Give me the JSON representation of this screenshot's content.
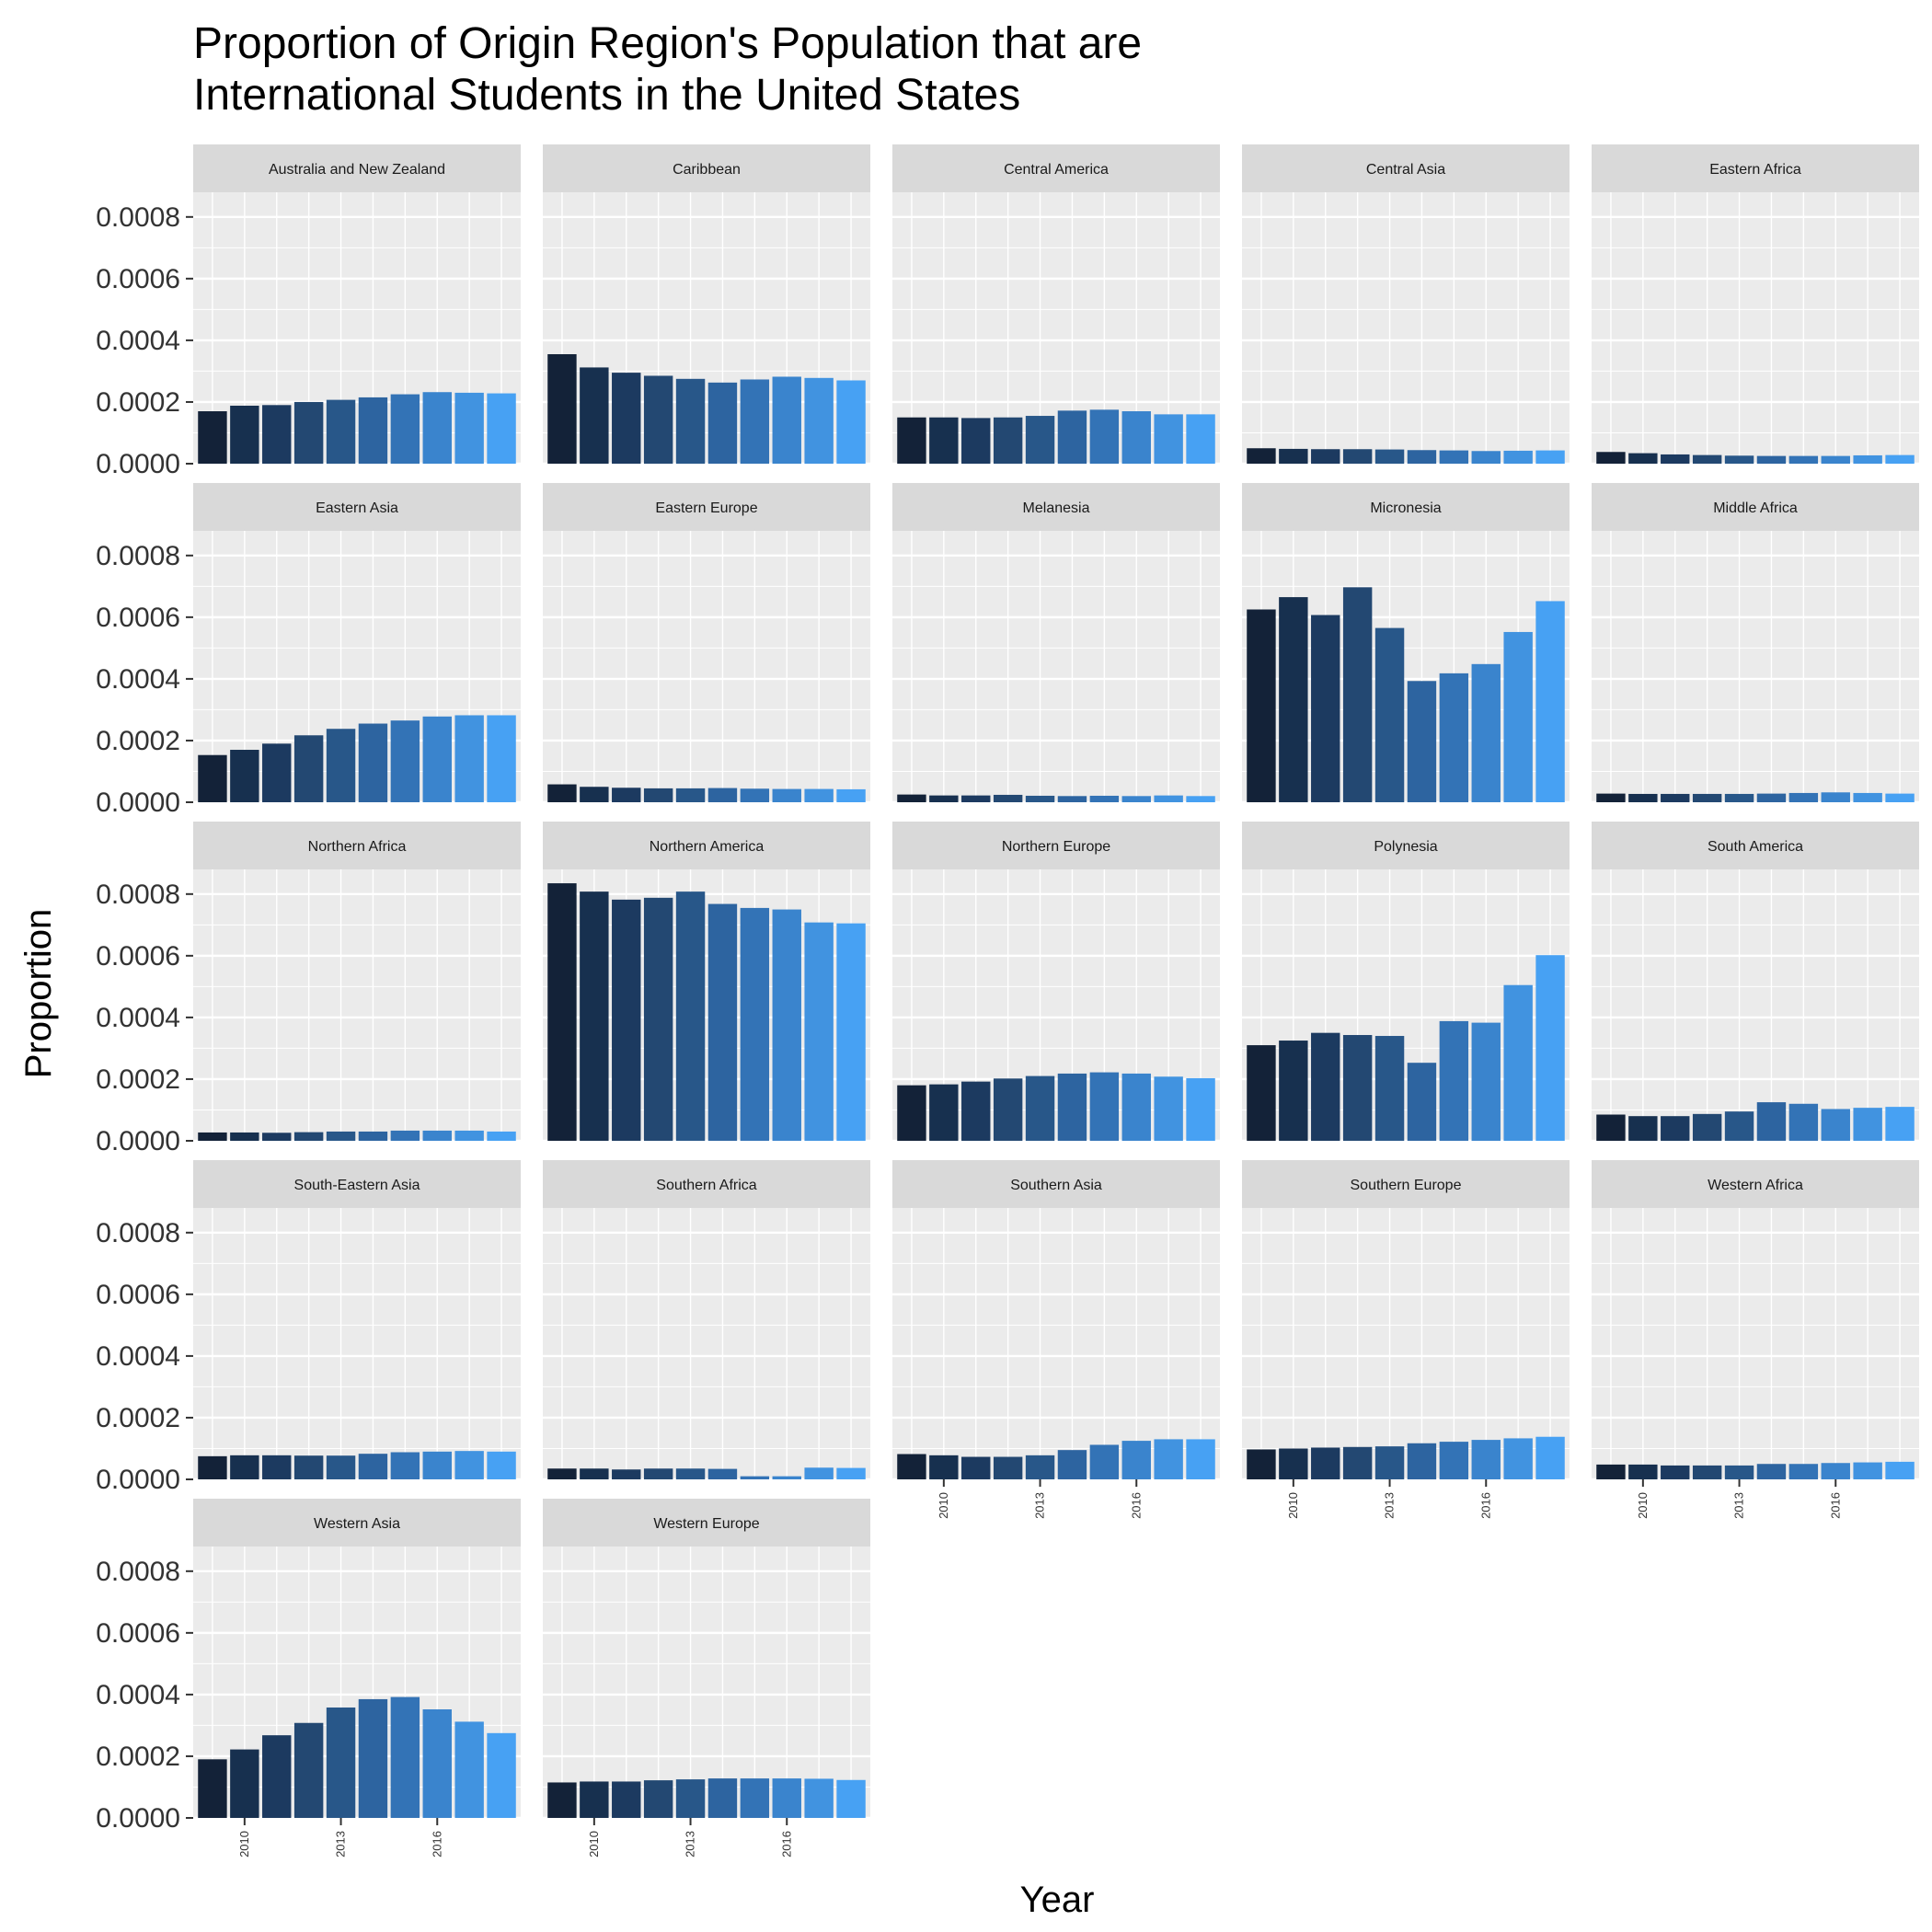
{
  "title": "Proportion of Origin Region's Population that are\nInternational Students in the United States",
  "chart_data": {
    "type": "bar",
    "facet": "wrap",
    "xlabel": "Year",
    "ylabel": "Proportion",
    "x": [
      2009,
      2010,
      2011,
      2012,
      2013,
      2014,
      2015,
      2016,
      2017,
      2018
    ],
    "xticks": [
      "2010",
      "2013",
      "2016"
    ],
    "yticks": [
      "0.0000",
      "0.0002",
      "0.0004",
      "0.0006",
      "0.0008"
    ],
    "ylim": [
      0,
      0.00088
    ],
    "grid": true,
    "legend": "none",
    "colors": [
      "#132238",
      "#17304f",
      "#1c3a60",
      "#234872",
      "#285789",
      "#2d64a0",
      "#3373b6",
      "#3a84cd",
      "#4193e0",
      "#47a1f3"
    ],
    "panels": [
      {
        "name": "Australia and New Zealand",
        "values": [
          0.00017,
          0.000188,
          0.00019,
          0.0002,
          0.000207,
          0.000215,
          0.000225,
          0.000232,
          0.00023,
          0.000228
        ]
      },
      {
        "name": "Caribbean",
        "values": [
          0.000355,
          0.000312,
          0.000295,
          0.000285,
          0.000275,
          0.000263,
          0.000273,
          0.000282,
          0.000278,
          0.00027
        ]
      },
      {
        "name": "Central America",
        "values": [
          0.00015,
          0.00015,
          0.000148,
          0.00015,
          0.000155,
          0.000172,
          0.000175,
          0.00017,
          0.00016,
          0.00016
        ]
      },
      {
        "name": "Central Asia",
        "values": [
          5e-05,
          4.8e-05,
          4.7e-05,
          4.7e-05,
          4.6e-05,
          4.4e-05,
          4.3e-05,
          4.1e-05,
          4.2e-05,
          4.3e-05
        ]
      },
      {
        "name": "Eastern Africa",
        "values": [
          3.8e-05,
          3.4e-05,
          3e-05,
          2.8e-05,
          2.6e-05,
          2.5e-05,
          2.5e-05,
          2.5e-05,
          2.7e-05,
          2.8e-05
        ]
      },
      {
        "name": "Eastern Asia",
        "values": [
          0.000153,
          0.00017,
          0.00019,
          0.000217,
          0.000238,
          0.000255,
          0.000265,
          0.000278,
          0.000282,
          0.000282
        ]
      },
      {
        "name": "Eastern Europe",
        "values": [
          5.8e-05,
          5e-05,
          4.7e-05,
          4.5e-05,
          4.5e-05,
          4.6e-05,
          4.4e-05,
          4.3e-05,
          4.3e-05,
          4.2e-05
        ]
      },
      {
        "name": "Melanesia",
        "values": [
          2.5e-05,
          2.2e-05,
          2.2e-05,
          2.4e-05,
          2.1e-05,
          2e-05,
          2.1e-05,
          2e-05,
          2.2e-05,
          2e-05
        ]
      },
      {
        "name": "Micronesia",
        "values": [
          0.000625,
          0.000665,
          0.000607,
          0.000697,
          0.000565,
          0.000393,
          0.000418,
          0.000448,
          0.000552,
          0.000652
        ]
      },
      {
        "name": "Middle Africa",
        "values": [
          2.8e-05,
          2.7e-05,
          2.7e-05,
          2.7e-05,
          2.7e-05,
          2.8e-05,
          3e-05,
          3.2e-05,
          3e-05,
          2.8e-05
        ]
      },
      {
        "name": "Northern Africa",
        "values": [
          2.7e-05,
          2.7e-05,
          2.6e-05,
          2.8e-05,
          3e-05,
          3e-05,
          3.3e-05,
          3.3e-05,
          3.3e-05,
          3e-05
        ]
      },
      {
        "name": "Northern America",
        "values": [
          0.000835,
          0.000808,
          0.000782,
          0.000788,
          0.000808,
          0.000768,
          0.000755,
          0.00075,
          0.000708,
          0.000705
        ]
      },
      {
        "name": "Northern Europe",
        "values": [
          0.00018,
          0.000183,
          0.000192,
          0.000202,
          0.00021,
          0.000218,
          0.000222,
          0.000218,
          0.000208,
          0.000203
        ]
      },
      {
        "name": "Polynesia",
        "values": [
          0.00031,
          0.000325,
          0.00035,
          0.000343,
          0.00034,
          0.000253,
          0.000388,
          0.000383,
          0.000505,
          0.000602
        ]
      },
      {
        "name": "South America",
        "values": [
          8.5e-05,
          8e-05,
          8e-05,
          8.7e-05,
          9.5e-05,
          0.000125,
          0.00012,
          0.000103,
          0.000107,
          0.00011
        ]
      },
      {
        "name": "South-Eastern Asia",
        "values": [
          7.5e-05,
          7.8e-05,
          7.8e-05,
          7.7e-05,
          7.7e-05,
          8.3e-05,
          8.8e-05,
          9e-05,
          9.2e-05,
          9e-05
        ]
      },
      {
        "name": "Southern Africa",
        "values": [
          3.5e-05,
          3.5e-05,
          3.2e-05,
          3.5e-05,
          3.5e-05,
          3.4e-05,
          1e-05,
          1e-05,
          3.8e-05,
          3.7e-05
        ]
      },
      {
        "name": "Southern Asia",
        "values": [
          8.2e-05,
          7.8e-05,
          7.3e-05,
          7.3e-05,
          7.8e-05,
          9.5e-05,
          0.000112,
          0.000125,
          0.00013,
          0.00013
        ]
      },
      {
        "name": "Southern Europe",
        "values": [
          9.7e-05,
          0.0001,
          0.000103,
          0.000105,
          0.000107,
          0.000117,
          0.000122,
          0.000128,
          0.000133,
          0.000138
        ]
      },
      {
        "name": "Western Africa",
        "values": [
          4.8e-05,
          4.8e-05,
          4.5e-05,
          4.5e-05,
          4.5e-05,
          5e-05,
          5e-05,
          5.3e-05,
          5.5e-05,
          5.7e-05
        ]
      },
      {
        "name": "Western Asia",
        "values": [
          0.00019,
          0.000222,
          0.000268,
          0.000308,
          0.000358,
          0.000385,
          0.000392,
          0.000352,
          0.000312,
          0.000275
        ]
      },
      {
        "name": "Western Europe",
        "values": [
          0.000115,
          0.000118,
          0.000118,
          0.000122,
          0.000125,
          0.000128,
          0.000128,
          0.000128,
          0.000127,
          0.000123
        ]
      }
    ]
  }
}
